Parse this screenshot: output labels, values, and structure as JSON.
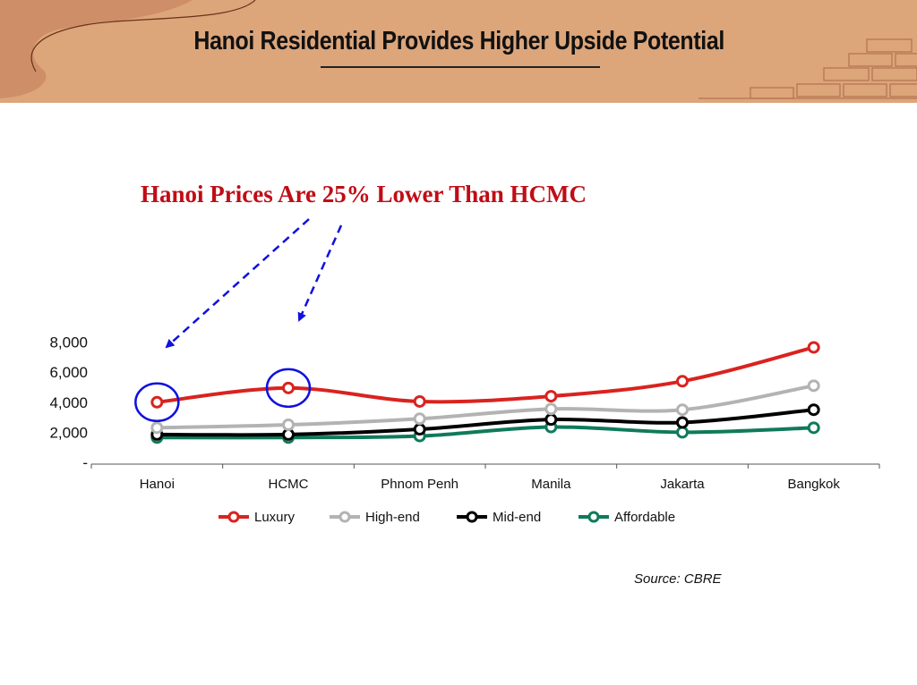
{
  "slide": {
    "title": "Hanoi Residential Provides Higher Upside Potential",
    "callout": "Hanoi Prices Are 25% Lower Than HCMC",
    "source": "Source: CBRE"
  },
  "colors": {
    "header_bg": "#dca57a",
    "callout": "#c00d16",
    "annotation": "#1010e0",
    "Luxury": "#d9231f",
    "High-end": "#b3b3b3",
    "Mid-end": "#000000",
    "Affordable": "#0f7a5a"
  },
  "chart_data": {
    "type": "line",
    "categories": [
      "Hanoi",
      "HCMC",
      "Phnom Penh",
      "Manila",
      "Jakarta",
      "Bangkok"
    ],
    "series": [
      {
        "name": "Luxury",
        "values": [
          4000,
          4950,
          4050,
          4400,
          5400,
          7650
        ]
      },
      {
        "name": "High-end",
        "values": [
          2300,
          2500,
          2900,
          3550,
          3500,
          5100
        ]
      },
      {
        "name": "Mid-end",
        "values": [
          1850,
          1850,
          2200,
          2850,
          2650,
          3500
        ]
      },
      {
        "name": "Affordable",
        "values": [
          1650,
          1650,
          1750,
          2350,
          2000,
          2300
        ]
      }
    ],
    "y_tick_values": [
      0,
      2000,
      4000,
      6000,
      8000
    ],
    "y_tick_labels": [
      "-",
      "2,000",
      "4,000",
      "6,000",
      "8,000"
    ],
    "ylim": [
      0,
      8000
    ],
    "smooth": true,
    "legend_position": "bottom",
    "grid": false,
    "highlighted_categories": [
      "Hanoi",
      "HCMC"
    ]
  }
}
